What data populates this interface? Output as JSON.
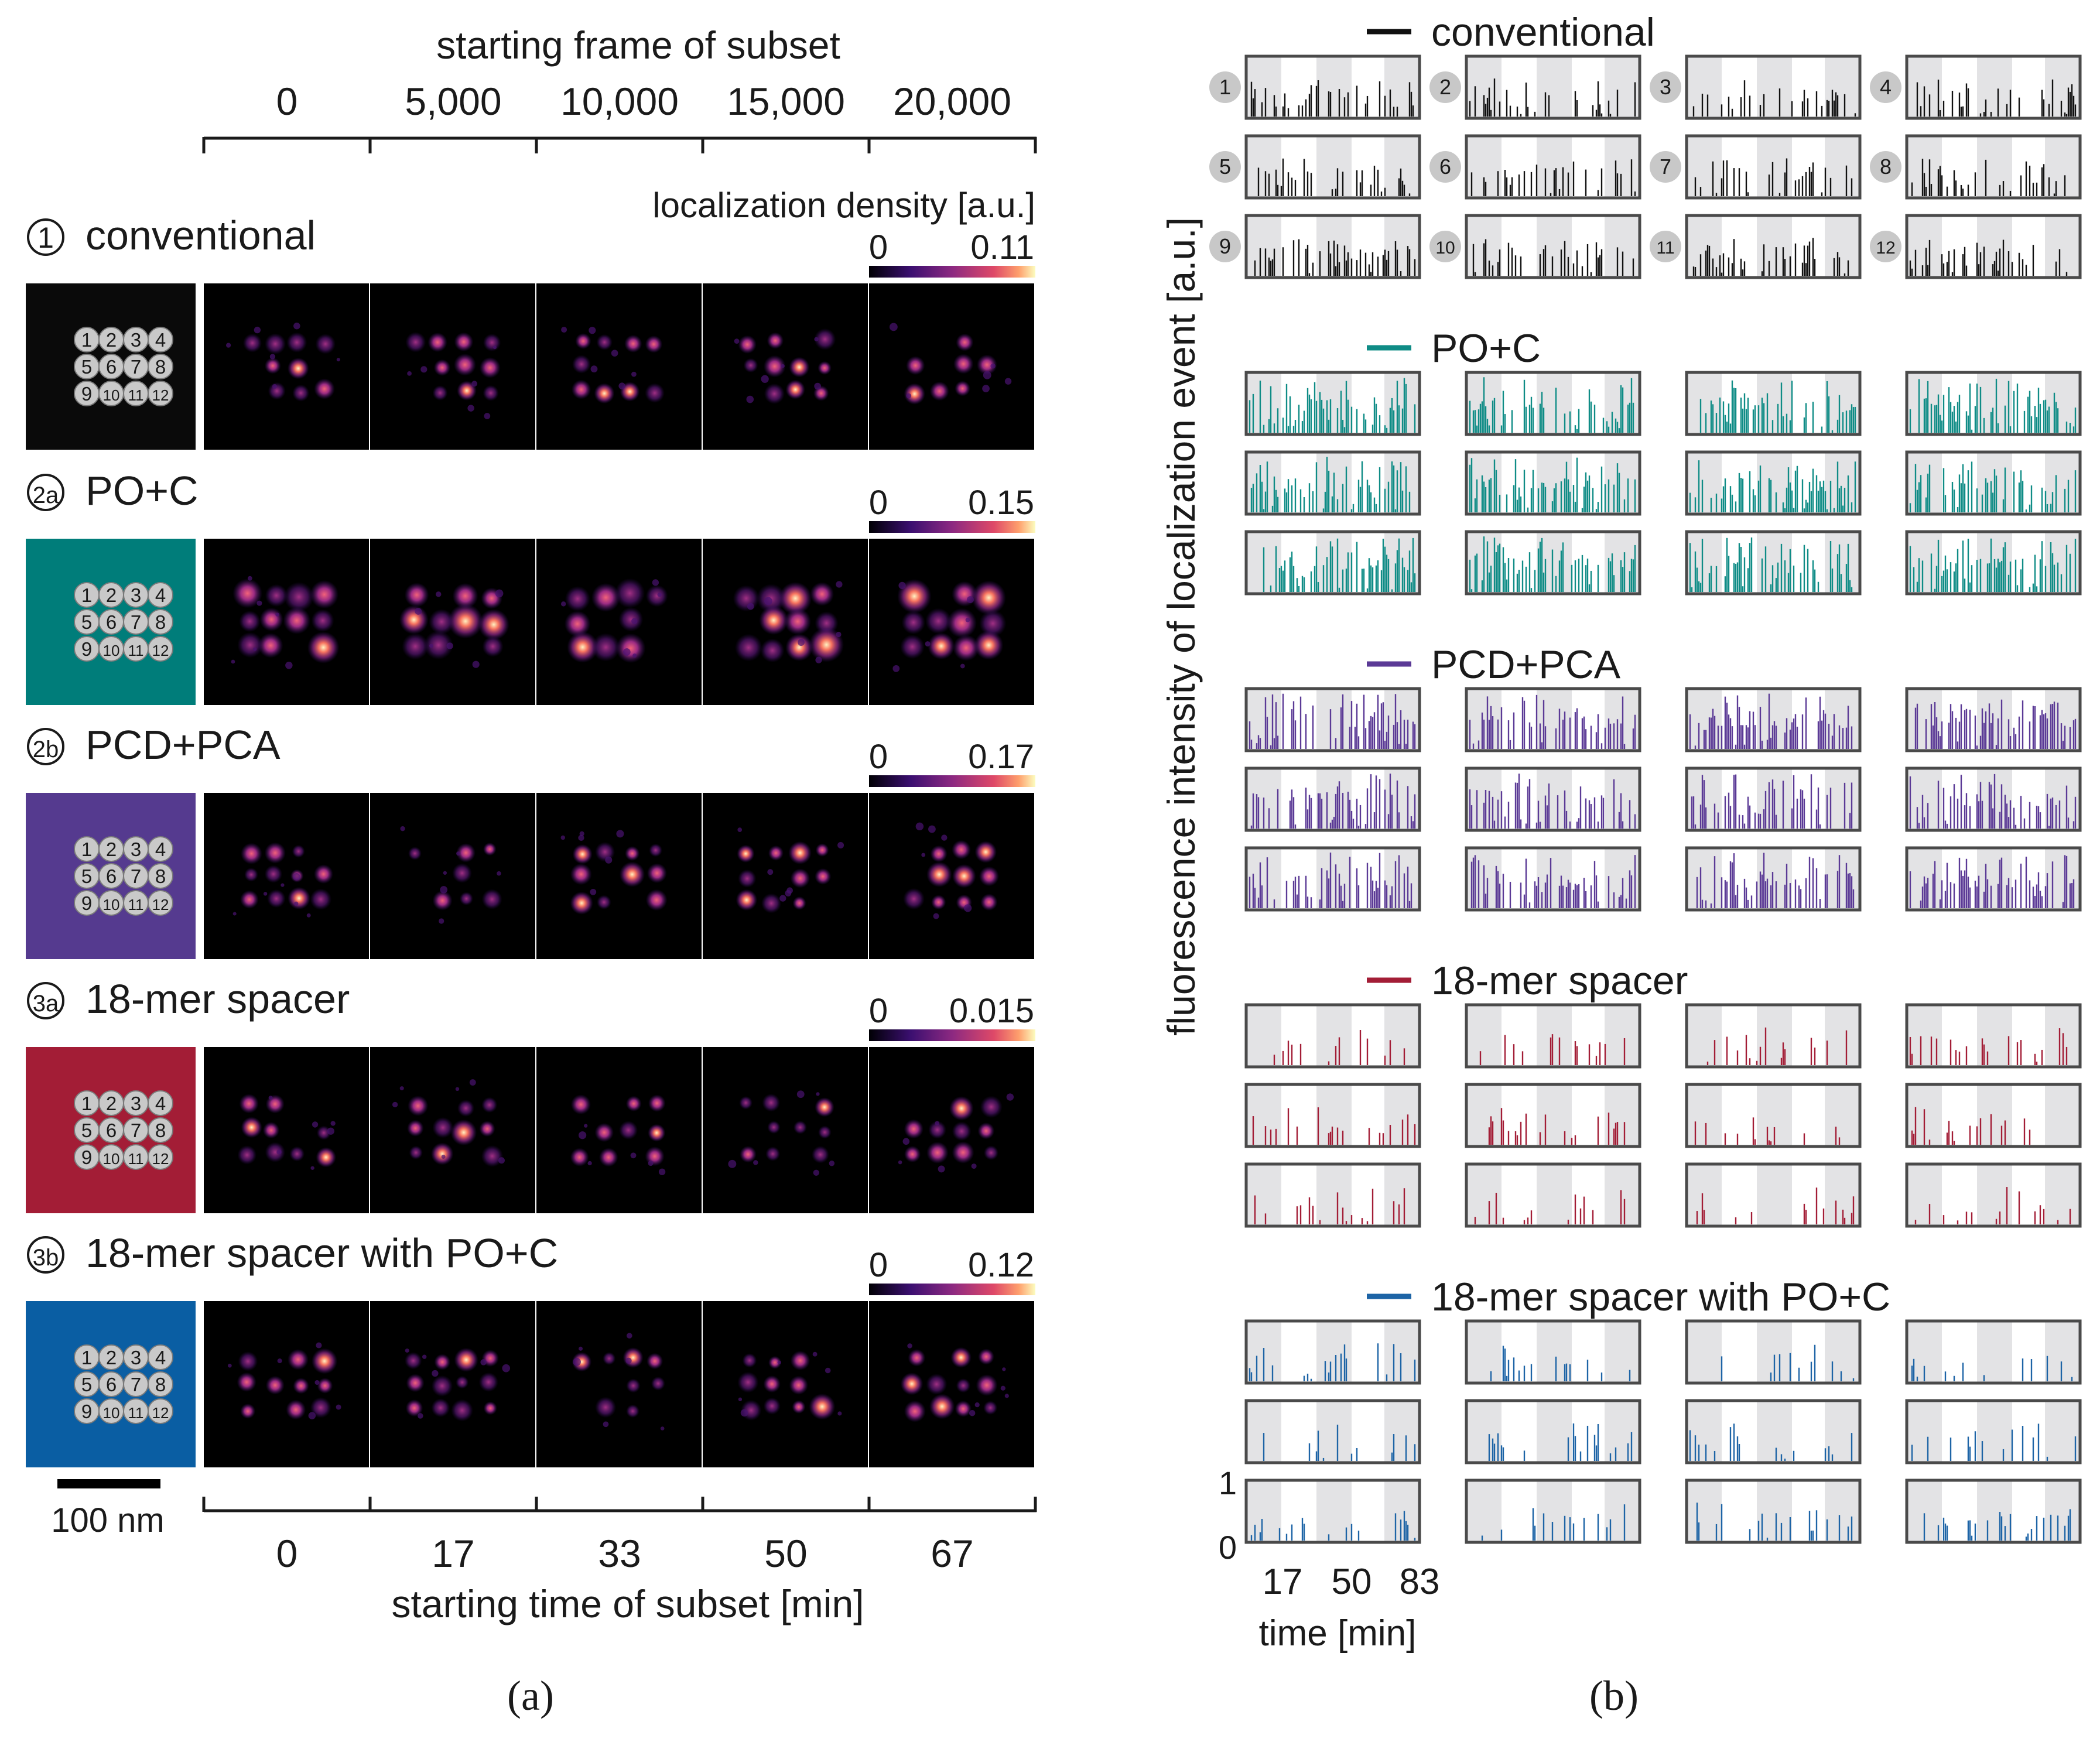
{
  "panel_a": {
    "top_axis_title": "starting frame of subset",
    "frame_ticks": [
      "0",
      "5,000",
      "10,000",
      "15,000",
      "20,000"
    ],
    "colorbar_title": "localization density [a.u.]",
    "bottom_axis_title": "starting time of subset [min]",
    "time_ticks": [
      "0",
      "17",
      "33",
      "50",
      "67"
    ],
    "scale_bar": "100 nm",
    "caption": "(a)",
    "site_numbers": [
      "1",
      "2",
      "3",
      "4",
      "5",
      "6",
      "7",
      "8",
      "9",
      "10",
      "11",
      "12"
    ],
    "rows": [
      {
        "num": "1",
        "label": "conventional",
        "color": "#0a0a0a",
        "cb_min": "0",
        "cb_max": "0.11"
      },
      {
        "num": "2a",
        "label": "PO+C",
        "color": "#007d7a",
        "cb_min": "0",
        "cb_max": "0.15"
      },
      {
        "num": "2b",
        "label": "PCD+PCA",
        "color": "#553a8f",
        "cb_min": "0",
        "cb_max": "0.17"
      },
      {
        "num": "3a",
        "label": "18-mer spacer",
        "color": "#a31d36",
        "cb_min": "0",
        "cb_max": "0.015"
      },
      {
        "num": "3b",
        "label": "18-mer spacer with PO+C",
        "color": "#0a5ea3",
        "cb_min": "0",
        "cb_max": "0.12"
      }
    ]
  },
  "panel_b": {
    "y_axis_title": "fluorescence intensity of localization event [a.u.]",
    "x_axis_title": "time [min]",
    "x_ticks": [
      "17",
      "50",
      "83"
    ],
    "y_ticks": [
      "1",
      "0"
    ],
    "caption": "(b)",
    "site_numbers": [
      "1",
      "2",
      "3",
      "4",
      "5",
      "6",
      "7",
      "8",
      "9",
      "10",
      "11",
      "12"
    ],
    "legend": [
      {
        "label": "conventional",
        "color": "#111111"
      },
      {
        "label": "PO+C",
        "color": "#0f8c86"
      },
      {
        "label": "PCD+PCA",
        "color": "#5b3a96"
      },
      {
        "label": "18-mer spacer",
        "color": "#a31d36"
      },
      {
        "label": "18-mer spacer with PO+C",
        "color": "#1d64a6"
      }
    ]
  }
}
